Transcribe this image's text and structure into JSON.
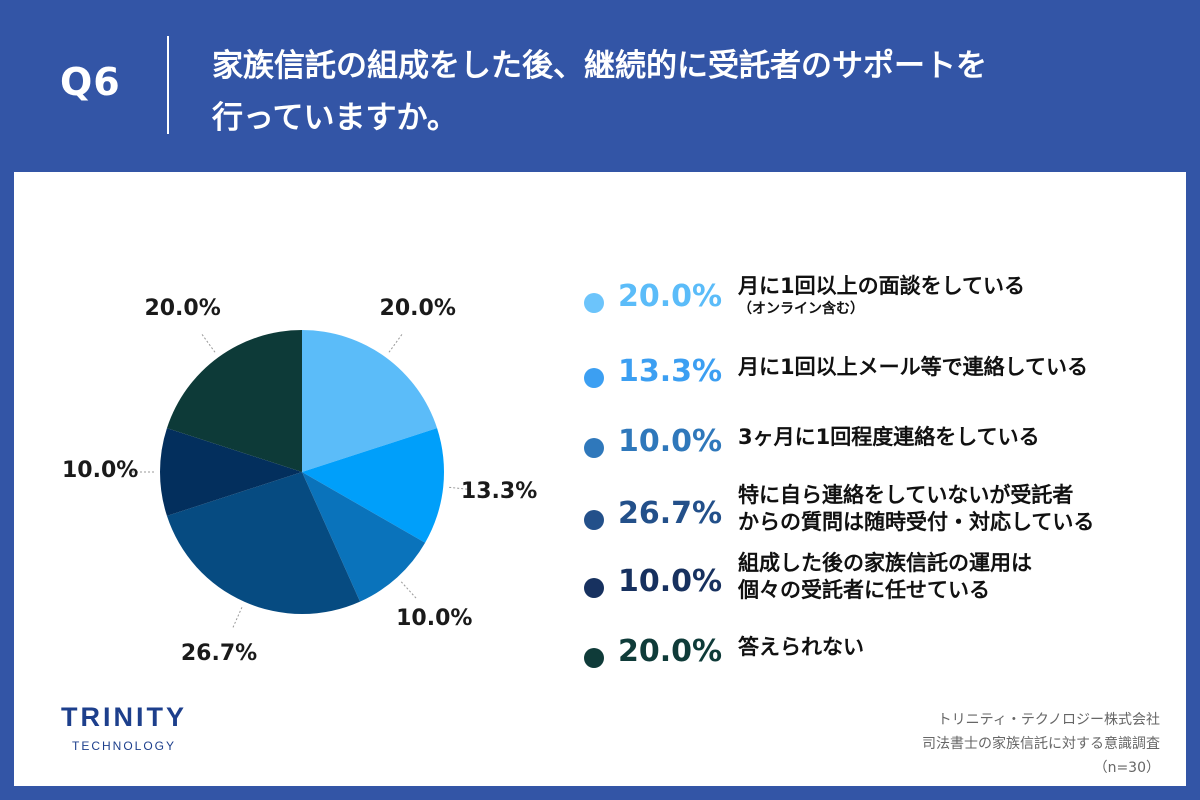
{
  "header": {
    "question_number": "Q6",
    "title_line1": "家族信託の組成をした後、継続的に受託者のサポートを",
    "title_line2": "行っていますか。"
  },
  "chart_data": {
    "type": "pie",
    "start": "12 o'clock, clockwise",
    "slices": [
      {
        "label": "月に1回以上の面談をしている",
        "note": "（オンライン含む）",
        "value": 20.0,
        "display": "20.0%",
        "color": "#5bbcf9"
      },
      {
        "label": "月に1回以上メール等で連絡している",
        "note": "",
        "value": 13.3,
        "display": "13.3%",
        "color": "#009ffa"
      },
      {
        "label": "3ヶ月に1回程度連絡をしている",
        "note": "",
        "value": 10.0,
        "display": "10.0%",
        "color": "#0a73bb"
      },
      {
        "label": "特に自ら連絡をしていないが受託者からの質問は随時受付・対応している",
        "note": "",
        "value": 26.7,
        "display": "26.7%",
        "color": "#064b81"
      },
      {
        "label": "組成した後の家族信託の運用は個々の受託者に任せている",
        "note": "",
        "value": 10.0,
        "display": "10.0%",
        "color": "#032f5d"
      },
      {
        "label": "答えられない",
        "note": "",
        "value": 20.0,
        "display": "20.0%",
        "color": "#0d3a38"
      }
    ]
  },
  "legend": [
    {
      "pct": "20.0%",
      "line1": "月に1回以上の面談をしている",
      "line2": "",
      "note": "（オンライン含む）",
      "dot_color": "#6cc4fb",
      "pct_color": "#5bbcf9"
    },
    {
      "pct": "13.3%",
      "line1": "月に1回以上メール等で連絡している",
      "line2": "",
      "note": "",
      "dot_color": "#3c9ff2",
      "pct_color": "#3c9ff2"
    },
    {
      "pct": "10.0%",
      "line1": "3ヶ月に1回程度連絡をしている",
      "line2": "",
      "note": "",
      "dot_color": "#2f78bb",
      "pct_color": "#2f78bb"
    },
    {
      "pct": "26.7%",
      "line1": "特に自ら連絡をしていないが受託者",
      "line2": "からの質問は随時受付・対応している",
      "note": "",
      "dot_color": "#23508a",
      "pct_color": "#23508a"
    },
    {
      "pct": "10.0%",
      "line1": "組成した後の家族信託の運用は",
      "line2": "個々の受託者に任せている",
      "note": "",
      "dot_color": "#17315f",
      "pct_color": "#17315f"
    },
    {
      "pct": "20.0%",
      "line1": "答えられない",
      "line2": "",
      "note": "",
      "dot_color": "#0f3b39",
      "pct_color": "#0f3b39"
    }
  ],
  "logo": {
    "main": "TRINITY",
    "sub": "TECHNOLOGY"
  },
  "credit": {
    "line1": "トリニティ・テクノロジー株式会社",
    "line2": "司法書士の家族信託に対する意識調査",
    "line3": "（n=30）"
  }
}
